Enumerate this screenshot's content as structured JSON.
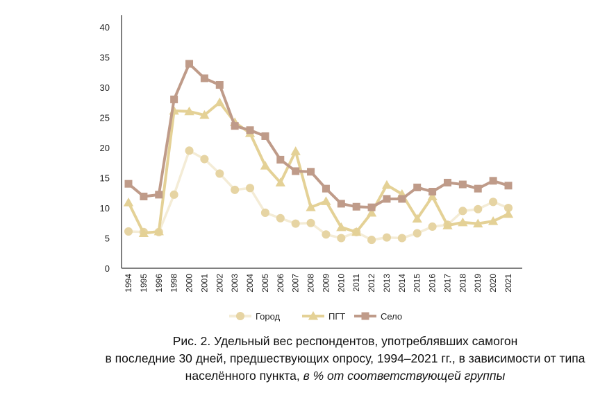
{
  "chart_data": {
    "type": "line",
    "title": "",
    "xlabel": "",
    "ylabel": "",
    "ylim": [
      0,
      40
    ],
    "yticks": [
      0,
      5,
      10,
      15,
      20,
      25,
      30,
      35,
      40
    ],
    "grid": false,
    "legend_position": "bottom",
    "categories": [
      "1994",
      "1995",
      "1996",
      "1998",
      "2000",
      "2001",
      "2002",
      "2003",
      "2004",
      "2005",
      "2006",
      "2007",
      "2008",
      "2009",
      "2010",
      "2011",
      "2012",
      "2013",
      "2014",
      "2015",
      "2016",
      "2017",
      "2018",
      "2019",
      "2020",
      "2021"
    ],
    "series": [
      {
        "name": "Город",
        "marker": "circle",
        "color": "#e6d4a3",
        "line_color": "#f4ecd6",
        "values": [
          6.1,
          6.0,
          6.0,
          12.2,
          19.5,
          18.1,
          15.7,
          13.0,
          13.3,
          9.2,
          8.3,
          7.4,
          7.5,
          5.6,
          5.0,
          6.0,
          4.7,
          5.1,
          5.0,
          5.8,
          6.9,
          7.2,
          9.5,
          9.8,
          11.0,
          10.0
        ]
      },
      {
        "name": "ПГТ",
        "marker": "triangle",
        "color": "#e4d196",
        "line_color": "#e4d196",
        "values": [
          10.9,
          5.8,
          6.1,
          26.1,
          26.0,
          25.4,
          27.5,
          24.2,
          22.4,
          17.0,
          14.2,
          19.4,
          10.1,
          11.1,
          6.8,
          6.0,
          9.2,
          13.8,
          12.3,
          8.2,
          11.9,
          7.1,
          7.6,
          7.4,
          7.8,
          9.0
        ]
      },
      {
        "name": "Село",
        "marker": "square",
        "color": "#bf9b89",
        "line_color": "#bf9b89",
        "values": [
          14.0,
          11.9,
          12.2,
          28.0,
          33.9,
          31.5,
          30.4,
          23.6,
          22.9,
          21.9,
          18.0,
          16.1,
          16.0,
          13.2,
          10.7,
          10.2,
          10.1,
          11.5,
          11.5,
          13.4,
          12.7,
          14.2,
          13.9,
          13.2,
          14.5,
          13.7
        ]
      }
    ]
  },
  "caption": {
    "line1": "Рис. 2. Удельный вес респондентов, употреблявших самогон",
    "line2": "в последние 30 дней, предшествующих опросу, 1994–2021 гг., в зависимости от типа",
    "line3_plain": "населённого пункта, ",
    "line3_italic": "в % от соответствующей группы"
  }
}
